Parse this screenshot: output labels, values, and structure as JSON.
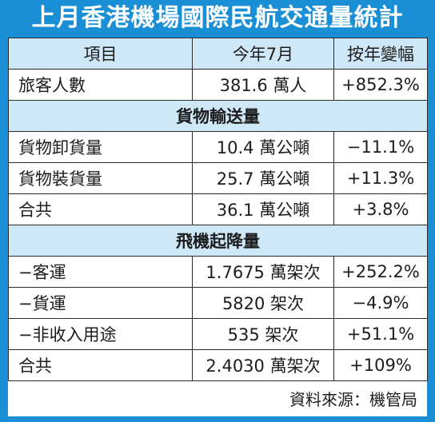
{
  "title": "上月香港機場國際民航交通量統計",
  "header": {
    "col1": "項目",
    "col2": "今年7月",
    "col3": "按年變幅"
  },
  "passenger": {
    "label": "旅客人數",
    "value": "381.6 萬人",
    "change": "+852.3%"
  },
  "cargo": {
    "section_title": "貨物輸送量",
    "rows": [
      {
        "label": "貨物卸貨量",
        "value": "10.4 萬公噸",
        "change": "−11.1%"
      },
      {
        "label": "貨物裝貨量",
        "value": "25.7 萬公噸",
        "change": "+11.3%"
      },
      {
        "label": "合共",
        "value": "36.1 萬公噸",
        "change": "+3.8%"
      }
    ]
  },
  "flights": {
    "section_title": "飛機起降量",
    "rows": [
      {
        "label": "−客運",
        "value": "1.7675 萬架次",
        "change": "+252.2%"
      },
      {
        "label": "−貨運",
        "value": "5820 架次",
        "change": "−4.9%"
      },
      {
        "label": "−非收入用途",
        "value": "535 架次",
        "change": "+51.1%"
      },
      {
        "label": "合共",
        "value": "2.4030 萬架次",
        "change": "+109%"
      }
    ]
  },
  "source": "資料來源：機管局",
  "colors": {
    "frame": "#1a8fd6",
    "header_fill": "#cfe8f7",
    "title_text": "#ffffff"
  }
}
